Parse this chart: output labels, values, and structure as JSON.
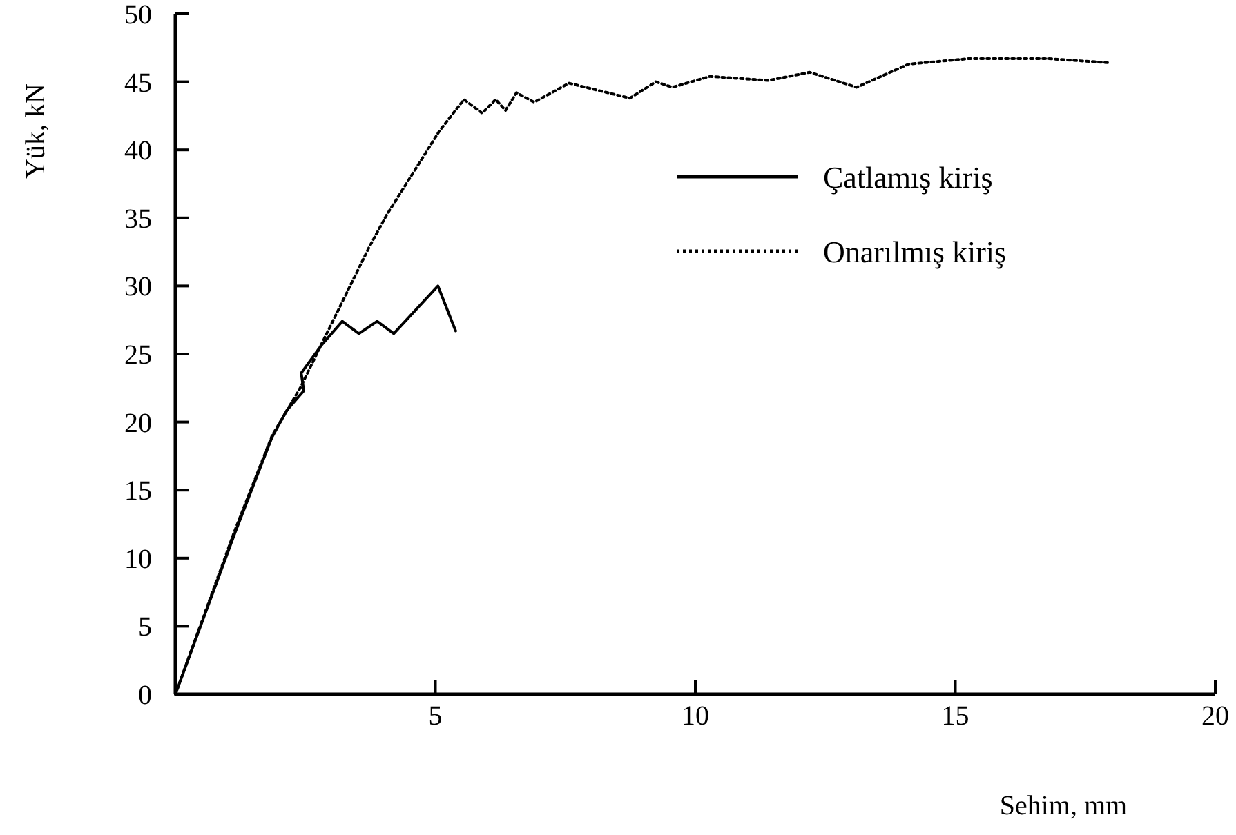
{
  "chart_data": {
    "type": "line",
    "xlabel": "Sehim, mm",
    "ylabel": "Yük, kN",
    "xlim": [
      0,
      20
    ],
    "ylim": [
      0,
      50
    ],
    "xticks": [
      {
        "value": 0,
        "label": null
      },
      5,
      10,
      15,
      20
    ],
    "yticks": [
      0,
      5,
      10,
      15,
      20,
      25,
      30,
      35,
      40,
      45,
      50
    ],
    "grid": false,
    "legend": "top right",
    "marker": "none",
    "series": [
      {
        "name": "Çatlamış kiriş",
        "color": "#000000",
        "line_style": "solid",
        "x": [
          0,
          1.14,
          1.86,
          2.15,
          2.47,
          2.42,
          2.82,
          3.21,
          3.53,
          3.88,
          4.2,
          5.05,
          5.39
        ],
        "values": [
          0,
          11.8,
          18.9,
          20.9,
          22.3,
          23.6,
          25.7,
          27.4,
          26.5,
          27.4,
          26.5,
          30,
          26.7
        ]
      },
      {
        "name": "Onarılmış kiriş",
        "color": "#000000",
        "line_style": "dotted",
        "x": [
          0,
          1.14,
          1.86,
          2.4,
          2.82,
          3.72,
          4.06,
          5.08,
          5.55,
          5.9,
          6.16,
          6.35,
          6.56,
          6.9,
          7.57,
          8.74,
          9.24,
          9.56,
          10.28,
          11.4,
          12.2,
          13.1,
          14.1,
          15.25,
          16.8,
          17.96
        ],
        "values": [
          0,
          12,
          19,
          22.5,
          25.8,
          32.8,
          35.2,
          41.4,
          43.7,
          42.7,
          43.7,
          42.9,
          44.2,
          43.5,
          44.9,
          43.8,
          45,
          44.6,
          45.4,
          45.1,
          45.7,
          44.6,
          46.3,
          46.7,
          46.7,
          46.4
        ]
      }
    ]
  }
}
